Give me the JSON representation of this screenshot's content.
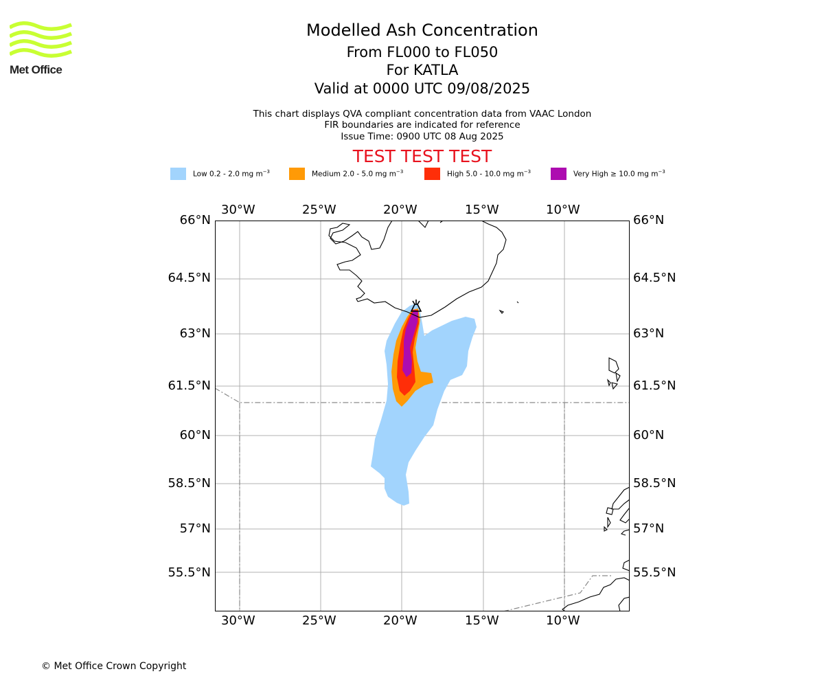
{
  "org": {
    "logo_text": "Met Office",
    "logo_color": "#c8ff33"
  },
  "header": {
    "title": "Modelled Ash Concentration",
    "levels": "From FL000 to FL050",
    "volcano": "For KATLA",
    "valid": "Valid at 0000 UTC 09/08/2025",
    "info_lines": [
      "This chart displays QVA compliant concentration data from VAAC London",
      "FIR boundaries are indicated for reference",
      "Issue Time: 0900 UTC 08 Aug 2025"
    ],
    "banner": "TEST TEST TEST",
    "banner_color": "#e8121e"
  },
  "legend": [
    {
      "label": "Low 0.2 - 2.0 mg m",
      "sup": "−3",
      "color": "#a2d4fd"
    },
    {
      "label": "Medium 2.0 - 5.0 mg m",
      "sup": "−3",
      "color": "#ff9a06"
    },
    {
      "label": "High 5.0 - 10.0 mg m",
      "sup": "−3",
      "color": "#ff2e08"
    },
    {
      "label": "Very High  ≥  10.0 mg m",
      "sup": "−3",
      "color": "#ad0cb0"
    }
  ],
  "map": {
    "lon_ticks": [
      "30°W",
      "25°W",
      "20°W",
      "15°W",
      "10°W"
    ],
    "lat_ticks": [
      "66°N",
      "64.5°N",
      "63°N",
      "61.5°N",
      "60°N",
      "58.5°N",
      "57°N",
      "55.5°N"
    ],
    "volcano_icon": "volcano-icon"
  },
  "footer": {
    "copyright": "© Met Office Crown Copyright"
  }
}
